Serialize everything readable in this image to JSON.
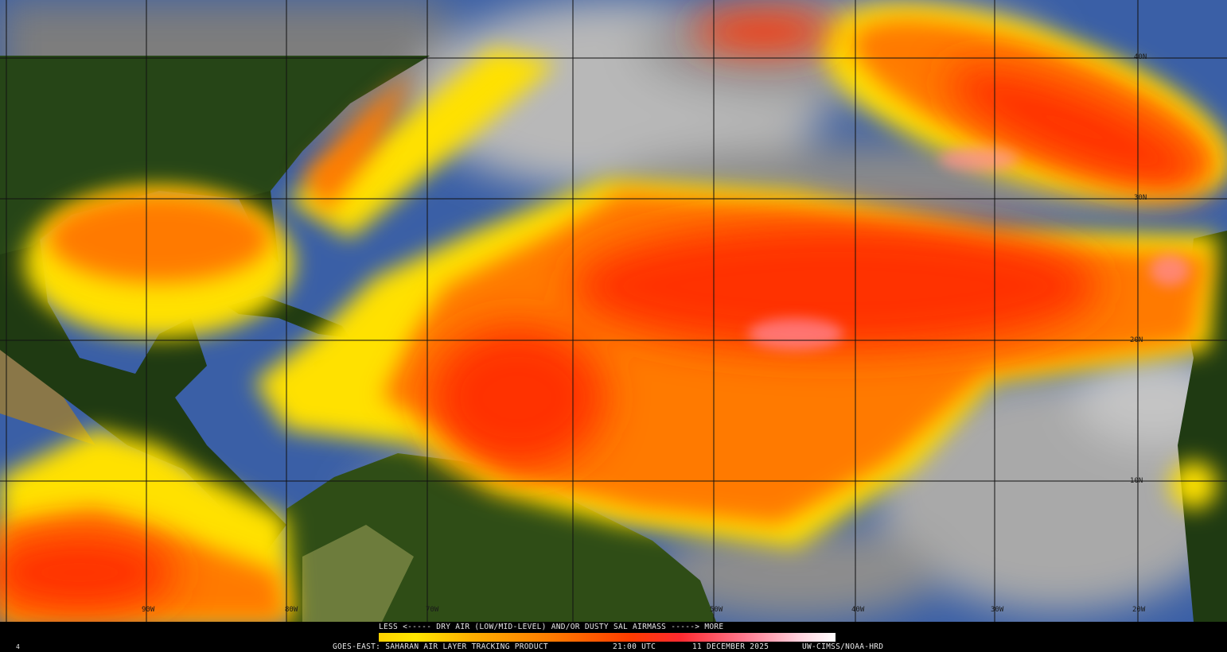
{
  "grid": {
    "latitude_labels": [
      "40N",
      "30N",
      "20N",
      "10N"
    ],
    "longitude_labels": [
      "90W",
      "80W",
      "70W",
      "50W",
      "40W",
      "30W",
      "20W"
    ]
  },
  "legend": {
    "caption": "LESS <----- DRY AIR (LOW/MID-LEVEL) AND/OR DUSTY SAL AIRMASS -----> MORE"
  },
  "footer": {
    "frame": "4",
    "product": "GOES-EAST: SAHARAN AIR LAYER TRACKING PRODUCT",
    "time": "21:00 UTC",
    "date": "11 DECEMBER 2025",
    "credit": "UW-CIMSS/NOAA-HRD"
  }
}
